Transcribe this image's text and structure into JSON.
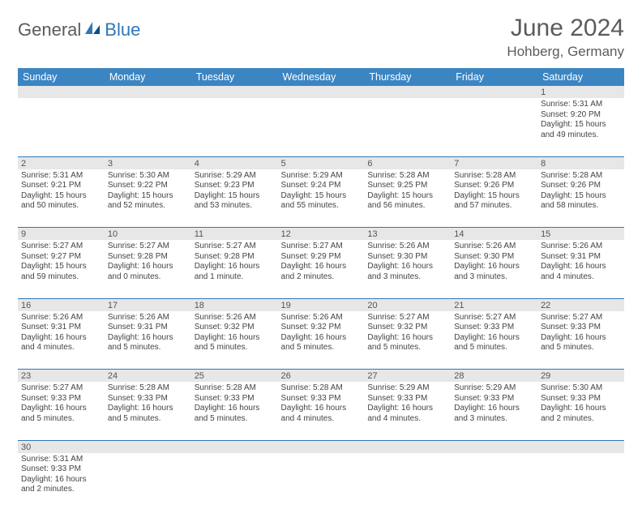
{
  "logo": {
    "part1": "General",
    "part2": "Blue"
  },
  "title": "June 2024",
  "location": "Hohberg, Germany",
  "colors": {
    "header_bg": "#3b85c2",
    "header_text": "#ffffff",
    "daynum_bg": "#e7e7e7",
    "border": "#2f78b7",
    "logo_gray": "#5b5b5b",
    "logo_blue": "#2f78b7",
    "text": "#444444"
  },
  "day_headers": [
    "Sunday",
    "Monday",
    "Tuesday",
    "Wednesday",
    "Thursday",
    "Friday",
    "Saturday"
  ],
  "weeks": [
    {
      "nums": [
        "",
        "",
        "",
        "",
        "",
        "",
        "1"
      ],
      "cells": [
        null,
        null,
        null,
        null,
        null,
        null,
        {
          "sunrise": "Sunrise: 5:31 AM",
          "sunset": "Sunset: 9:20 PM",
          "daylight": "Daylight: 15 hours and 49 minutes."
        }
      ]
    },
    {
      "nums": [
        "2",
        "3",
        "4",
        "5",
        "6",
        "7",
        "8"
      ],
      "cells": [
        {
          "sunrise": "Sunrise: 5:31 AM",
          "sunset": "Sunset: 9:21 PM",
          "daylight": "Daylight: 15 hours and 50 minutes."
        },
        {
          "sunrise": "Sunrise: 5:30 AM",
          "sunset": "Sunset: 9:22 PM",
          "daylight": "Daylight: 15 hours and 52 minutes."
        },
        {
          "sunrise": "Sunrise: 5:29 AM",
          "sunset": "Sunset: 9:23 PM",
          "daylight": "Daylight: 15 hours and 53 minutes."
        },
        {
          "sunrise": "Sunrise: 5:29 AM",
          "sunset": "Sunset: 9:24 PM",
          "daylight": "Daylight: 15 hours and 55 minutes."
        },
        {
          "sunrise": "Sunrise: 5:28 AM",
          "sunset": "Sunset: 9:25 PM",
          "daylight": "Daylight: 15 hours and 56 minutes."
        },
        {
          "sunrise": "Sunrise: 5:28 AM",
          "sunset": "Sunset: 9:26 PM",
          "daylight": "Daylight: 15 hours and 57 minutes."
        },
        {
          "sunrise": "Sunrise: 5:28 AM",
          "sunset": "Sunset: 9:26 PM",
          "daylight": "Daylight: 15 hours and 58 minutes."
        }
      ]
    },
    {
      "nums": [
        "9",
        "10",
        "11",
        "12",
        "13",
        "14",
        "15"
      ],
      "cells": [
        {
          "sunrise": "Sunrise: 5:27 AM",
          "sunset": "Sunset: 9:27 PM",
          "daylight": "Daylight: 15 hours and 59 minutes."
        },
        {
          "sunrise": "Sunrise: 5:27 AM",
          "sunset": "Sunset: 9:28 PM",
          "daylight": "Daylight: 16 hours and 0 minutes."
        },
        {
          "sunrise": "Sunrise: 5:27 AM",
          "sunset": "Sunset: 9:28 PM",
          "daylight": "Daylight: 16 hours and 1 minute."
        },
        {
          "sunrise": "Sunrise: 5:27 AM",
          "sunset": "Sunset: 9:29 PM",
          "daylight": "Daylight: 16 hours and 2 minutes."
        },
        {
          "sunrise": "Sunrise: 5:26 AM",
          "sunset": "Sunset: 9:30 PM",
          "daylight": "Daylight: 16 hours and 3 minutes."
        },
        {
          "sunrise": "Sunrise: 5:26 AM",
          "sunset": "Sunset: 9:30 PM",
          "daylight": "Daylight: 16 hours and 3 minutes."
        },
        {
          "sunrise": "Sunrise: 5:26 AM",
          "sunset": "Sunset: 9:31 PM",
          "daylight": "Daylight: 16 hours and 4 minutes."
        }
      ]
    },
    {
      "nums": [
        "16",
        "17",
        "18",
        "19",
        "20",
        "21",
        "22"
      ],
      "cells": [
        {
          "sunrise": "Sunrise: 5:26 AM",
          "sunset": "Sunset: 9:31 PM",
          "daylight": "Daylight: 16 hours and 4 minutes."
        },
        {
          "sunrise": "Sunrise: 5:26 AM",
          "sunset": "Sunset: 9:31 PM",
          "daylight": "Daylight: 16 hours and 5 minutes."
        },
        {
          "sunrise": "Sunrise: 5:26 AM",
          "sunset": "Sunset: 9:32 PM",
          "daylight": "Daylight: 16 hours and 5 minutes."
        },
        {
          "sunrise": "Sunrise: 5:26 AM",
          "sunset": "Sunset: 9:32 PM",
          "daylight": "Daylight: 16 hours and 5 minutes."
        },
        {
          "sunrise": "Sunrise: 5:27 AM",
          "sunset": "Sunset: 9:32 PM",
          "daylight": "Daylight: 16 hours and 5 minutes."
        },
        {
          "sunrise": "Sunrise: 5:27 AM",
          "sunset": "Sunset: 9:33 PM",
          "daylight": "Daylight: 16 hours and 5 minutes."
        },
        {
          "sunrise": "Sunrise: 5:27 AM",
          "sunset": "Sunset: 9:33 PM",
          "daylight": "Daylight: 16 hours and 5 minutes."
        }
      ]
    },
    {
      "nums": [
        "23",
        "24",
        "25",
        "26",
        "27",
        "28",
        "29"
      ],
      "cells": [
        {
          "sunrise": "Sunrise: 5:27 AM",
          "sunset": "Sunset: 9:33 PM",
          "daylight": "Daylight: 16 hours and 5 minutes."
        },
        {
          "sunrise": "Sunrise: 5:28 AM",
          "sunset": "Sunset: 9:33 PM",
          "daylight": "Daylight: 16 hours and 5 minutes."
        },
        {
          "sunrise": "Sunrise: 5:28 AM",
          "sunset": "Sunset: 9:33 PM",
          "daylight": "Daylight: 16 hours and 5 minutes."
        },
        {
          "sunrise": "Sunrise: 5:28 AM",
          "sunset": "Sunset: 9:33 PM",
          "daylight": "Daylight: 16 hours and 4 minutes."
        },
        {
          "sunrise": "Sunrise: 5:29 AM",
          "sunset": "Sunset: 9:33 PM",
          "daylight": "Daylight: 16 hours and 4 minutes."
        },
        {
          "sunrise": "Sunrise: 5:29 AM",
          "sunset": "Sunset: 9:33 PM",
          "daylight": "Daylight: 16 hours and 3 minutes."
        },
        {
          "sunrise": "Sunrise: 5:30 AM",
          "sunset": "Sunset: 9:33 PM",
          "daylight": "Daylight: 16 hours and 2 minutes."
        }
      ]
    },
    {
      "nums": [
        "30",
        "",
        "",
        "",
        "",
        "",
        ""
      ],
      "cells": [
        {
          "sunrise": "Sunrise: 5:31 AM",
          "sunset": "Sunset: 9:33 PM",
          "daylight": "Daylight: 16 hours and 2 minutes."
        },
        null,
        null,
        null,
        null,
        null,
        null
      ]
    }
  ]
}
